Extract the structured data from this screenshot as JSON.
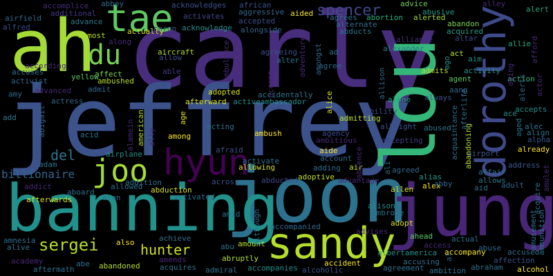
{
  "background": "#000000",
  "words": [
    {
      "text": "carly",
      "color": "#472d7b"
    },
    {
      "text": "jeffrey",
      "color": "#3b528b"
    },
    {
      "text": "lou",
      "color": "#35b779"
    },
    {
      "text": "joon",
      "color": "#2c728e"
    },
    {
      "text": "jung",
      "color": "#482576"
    },
    {
      "text": "banning",
      "color": "#21918c"
    },
    {
      "text": "ah",
      "color": "#a5db36"
    },
    {
      "text": "dorothy",
      "color": "#3e4a89"
    },
    {
      "text": "sandy",
      "color": "#b5de2b"
    },
    {
      "text": "tae",
      "color": "#5ec962"
    },
    {
      "text": "hyun",
      "color": "#440154"
    },
    {
      "text": "joo",
      "color": "#a5db36"
    },
    {
      "text": "du",
      "color": "#7ad151"
    },
    {
      "text": "spencer",
      "color": "#3e4a89"
    },
    {
      "text": "sergei",
      "color": "#b5de2b"
    },
    {
      "text": "hunter",
      "color": "#d0e11c"
    },
    {
      "text": "billionaire",
      "color": "#31688e"
    },
    {
      "text": "del",
      "color": "#2a788e"
    },
    {
      "text": "accomplice",
      "color": "#472d7b"
    },
    {
      "text": "abbey",
      "color": "#31688e"
    },
    {
      "text": "acknowledges",
      "color": "#3b528b"
    },
    {
      "text": "african",
      "color": "#3b528b"
    },
    {
      "text": "advice",
      "color": "#75d054"
    },
    {
      "text": "alley",
      "color": "#482878"
    },
    {
      "text": "airfield",
      "color": "#31688e"
    },
    {
      "text": "additional",
      "color": "#443983"
    },
    {
      "text": "activates",
      "color": "#404688"
    },
    {
      "text": "aggressive",
      "color": "#31688e"
    },
    {
      "text": "aided",
      "color": "#fde725"
    },
    {
      "text": "abusive",
      "color": "#1f9e89"
    },
    {
      "text": "alert",
      "color": "#20a486"
    },
    {
      "text": "alfred",
      "color": "#3e4a89"
    },
    {
      "text": "advance",
      "color": "#2a788e"
    },
    {
      "text": "aaron",
      "color": "#3b528b"
    },
    {
      "text": "acknowledge",
      "color": "#21918c"
    },
    {
      "text": "accepted",
      "color": "#3b528b"
    },
    {
      "text": "agrees",
      "color": "#2c728e"
    },
    {
      "text": "abortion",
      "color": "#29af7f"
    },
    {
      "text": "alerted",
      "color": "#9fda3a"
    },
    {
      "text": "almost",
      "color": "#b5de2b"
    },
    {
      "text": "actually",
      "color": "#d2e21b"
    },
    {
      "text": "alternate",
      "color": "#2c728e"
    },
    {
      "text": "abducts",
      "color": "#2a788e"
    },
    {
      "text": "abandon",
      "color": "#7ad151"
    },
    {
      "text": "acquired",
      "color": "#1f9e89"
    },
    {
      "text": "along",
      "color": "#482878"
    },
    {
      "text": "alongside",
      "color": "#31688e"
    },
    {
      "text": "alliance",
      "color": "#46327e"
    },
    {
      "text": "altar",
      "color": "#3e4a89"
    },
    {
      "text": "aircraft",
      "color": "#b5de2b"
    },
    {
      "text": "alexander",
      "color": "#2a788e"
    },
    {
      "text": "allow",
      "color": "#3b528b"
    },
    {
      "text": "agreeing",
      "color": "#3b528b"
    },
    {
      "text": "ad",
      "color": "#2c728e"
    },
    {
      "text": "act",
      "color": "#b8de29"
    },
    {
      "text": "aim",
      "color": "#21918c"
    },
    {
      "text": "allie",
      "color": "#22a785"
    },
    {
      "text": "according",
      "color": "#482878"
    },
    {
      "text": "alter",
      "color": "#2a788e"
    },
    {
      "text": "agree",
      "color": "#31688e"
    },
    {
      "text": "admits",
      "color": "#b5de2b"
    },
    {
      "text": "activity",
      "color": "#21918c"
    },
    {
      "text": "accuses",
      "color": "#2c728e"
    },
    {
      "text": "affect",
      "color": "#7ad151"
    },
    {
      "text": "able",
      "color": "#443983"
    },
    {
      "text": "yellow",
      "color": "#5ec962"
    },
    {
      "text": "ambushed",
      "color": "#b5de2b"
    },
    {
      "text": "agent",
      "color": "#5ec962"
    },
    {
      "text": "action",
      "color": "#35b779"
    },
    {
      "text": "activist",
      "color": "#31688e"
    },
    {
      "text": "advanced",
      "color": "#482878"
    },
    {
      "text": "admit",
      "color": "#31688e"
    },
    {
      "text": "amy",
      "color": "#2c728e"
    },
    {
      "text": "adopted",
      "color": "#d8e219"
    },
    {
      "text": "accidentally",
      "color": "#2a788e"
    },
    {
      "text": "aang",
      "color": "#31688e"
    },
    {
      "text": "actress",
      "color": "#31688e"
    },
    {
      "text": "afterward",
      "color": "#d8e219"
    },
    {
      "text": "activeambassador",
      "color": "#21918c"
    },
    {
      "text": "alone",
      "color": "#20a486"
    },
    {
      "text": "always",
      "color": "#3b528b"
    },
    {
      "text": "accepts",
      "color": "#21918c"
    },
    {
      "text": "add",
      "color": "#2a788e"
    },
    {
      "text": "ability",
      "color": "#3e4a89"
    },
    {
      "text": "admitting",
      "color": "#bddf26"
    },
    {
      "text": "ace",
      "color": "#21918c"
    },
    {
      "text": "acting",
      "color": "#2c728e"
    },
    {
      "text": "among",
      "color": "#fde725"
    },
    {
      "text": "ambush",
      "color": "#fde725"
    },
    {
      "text": "albright",
      "color": "#3b528b"
    },
    {
      "text": "abused",
      "color": "#2a788e"
    },
    {
      "text": "acid",
      "color": "#2c728e"
    },
    {
      "text": "agency",
      "color": "#3e4a89"
    },
    {
      "text": "ambitious",
      "color": "#482878"
    },
    {
      "text": "accepting",
      "color": "#433e85"
    },
    {
      "text": "alec",
      "color": "#2a788e"
    },
    {
      "text": "align",
      "color": "#2c728e"
    },
    {
      "text": "alpha",
      "color": "#38598c"
    },
    {
      "text": "airplane",
      "color": "#21918c"
    },
    {
      "text": "afraid",
      "color": "#3b528b"
    },
    {
      "text": "activate",
      "color": "#2c728e"
    },
    {
      "text": "aide",
      "color": "#fde725"
    },
    {
      "text": "account",
      "color": "#31688e"
    },
    {
      "text": "already",
      "color": "#fde725"
    },
    {
      "text": "adam",
      "color": "#2c728e"
    },
    {
      "text": "allowing",
      "color": "#d8e219"
    },
    {
      "text": "adding",
      "color": "#2c728e"
    },
    {
      "text": "air",
      "color": "#c2df23"
    },
    {
      "text": "agreed",
      "color": "#31688e"
    },
    {
      "text": "airport",
      "color": "#3b528b"
    },
    {
      "text": "affair",
      "color": "#2c728e"
    },
    {
      "text": "address",
      "color": "#38598c"
    },
    {
      "text": "addict",
      "color": "#482878"
    },
    {
      "text": "addition",
      "color": "#2c728e"
    },
    {
      "text": "adoptive",
      "color": "#c2df23"
    },
    {
      "text": "alias",
      "color": "#1f9e89"
    },
    {
      "text": "allows",
      "color": "#2a788e"
    },
    {
      "text": "aboard",
      "color": "#2c728e"
    },
    {
      "text": "allowed",
      "color": "#2c728e"
    },
    {
      "text": "across",
      "color": "#3b528b"
    },
    {
      "text": "abducted",
      "color": "#3e4a89"
    },
    {
      "text": "advantage",
      "color": "#482878"
    },
    {
      "text": "allen",
      "color": "#d8e219"
    },
    {
      "text": "alex",
      "color": "#fde725"
    },
    {
      "text": "abby",
      "color": "#31688e"
    },
    {
      "text": "aid",
      "color": "#2c728e"
    },
    {
      "text": "adult",
      "color": "#31688e"
    },
    {
      "text": "abduction",
      "color": "#d8e219"
    },
    {
      "text": "alan",
      "color": "#2c728e"
    },
    {
      "text": "activated",
      "color": "#2c728e"
    },
    {
      "text": "afterwards",
      "color": "#d8e219"
    },
    {
      "text": "alison",
      "color": "#21918c"
    },
    {
      "text": "ambrose",
      "color": "#2c728e"
    },
    {
      "text": "adopt",
      "color": "#d8e219"
    },
    {
      "text": "amid",
      "color": "#2c728e"
    },
    {
      "text": "accompanied",
      "color": "#31688e"
    },
    {
      "text": "advises",
      "color": "#482878"
    },
    {
      "text": "ahead",
      "color": "#5ec962"
    },
    {
      "text": "actual",
      "color": "#2c728e"
    },
    {
      "text": "achieve",
      "color": "#2c728e"
    },
    {
      "text": "amnesia",
      "color": "#2c728e"
    },
    {
      "text": "alive",
      "color": "#2c728e"
    },
    {
      "text": "also",
      "color": "#fde725"
    },
    {
      "text": "abu",
      "color": "#2c728e"
    },
    {
      "text": "amount",
      "color": "#b5de2b"
    },
    {
      "text": "access",
      "color": "#482878"
    },
    {
      "text": "accompany",
      "color": "#fde725"
    },
    {
      "text": "abuse",
      "color": "#31688e"
    },
    {
      "text": "accused",
      "color": "#2c728e"
    },
    {
      "text": "academy",
      "color": "#482878"
    },
    {
      "text": "abe",
      "color": "#2c728e"
    },
    {
      "text": "amends",
      "color": "#482878"
    },
    {
      "text": "abruptly",
      "color": "#b5de2b"
    },
    {
      "text": "albertamerica",
      "color": "#21918c"
    },
    {
      "text": "accusing",
      "color": "#2c728e"
    },
    {
      "text": "affection",
      "color": "#3b528b"
    },
    {
      "text": "abandoned",
      "color": "#b5de2b"
    },
    {
      "text": "acquires",
      "color": "#2c728e"
    },
    {
      "text": "accident",
      "color": "#fde725"
    },
    {
      "text": "agreement",
      "color": "#2c728e"
    },
    {
      "text": "abraham",
      "color": "#2c728e"
    },
    {
      "text": "aftermath",
      "color": "#2c728e"
    },
    {
      "text": "admiral",
      "color": "#2c728e"
    },
    {
      "text": "accompanies",
      "color": "#21918c"
    },
    {
      "text": "alcoholic",
      "color": "#3b528b"
    },
    {
      "text": "ambition",
      "color": "#2c728e"
    },
    {
      "text": "alcohol",
      "color": "#fde725"
    },
    {
      "text": "abigail",
      "color": "#31688e"
    },
    {
      "text": "alamein",
      "color": "#482878"
    },
    {
      "text": "american",
      "color": "#b5de2b"
    },
    {
      "text": "age",
      "color": "#d8e219"
    },
    {
      "text": "ally",
      "color": "#482878"
    },
    {
      "text": "ambulance",
      "color": "#482878"
    },
    {
      "text": "accept",
      "color": "#482878"
    },
    {
      "text": "adventure",
      "color": "#482878"
    },
    {
      "text": "amongst",
      "color": "#31688e"
    },
    {
      "text": "alice",
      "color": "#d8e219"
    },
    {
      "text": "allison",
      "color": "#31688e"
    },
    {
      "text": "absence",
      "color": "#482878"
    },
    {
      "text": "ali",
      "color": "#2c728e"
    },
    {
      "text": "although",
      "color": "#2c728e"
    },
    {
      "text": "al",
      "color": "#2c728e"
    },
    {
      "text": "ago",
      "color": "#21918c"
    },
    {
      "text": "afterlife",
      "color": "#2c728e"
    },
    {
      "text": "acquaintance",
      "color": "#2c728e"
    },
    {
      "text": "abandoning",
      "color": "#b5de2b"
    },
    {
      "text": "aging",
      "color": "#482878"
    },
    {
      "text": "aged",
      "color": "#2c728e"
    },
    {
      "text": "alerts",
      "color": "#31688e"
    },
    {
      "text": "actor",
      "color": "#482878"
    },
    {
      "text": "afford",
      "color": "#482878"
    },
    {
      "text": "amulet",
      "color": "#482878"
    },
    {
      "text": "acquire",
      "color": "#2c728e"
    },
    {
      "text": "amusement",
      "color": "#2c728e"
    },
    {
      "text": "ammunition",
      "color": "#2c728e"
    }
  ]
}
